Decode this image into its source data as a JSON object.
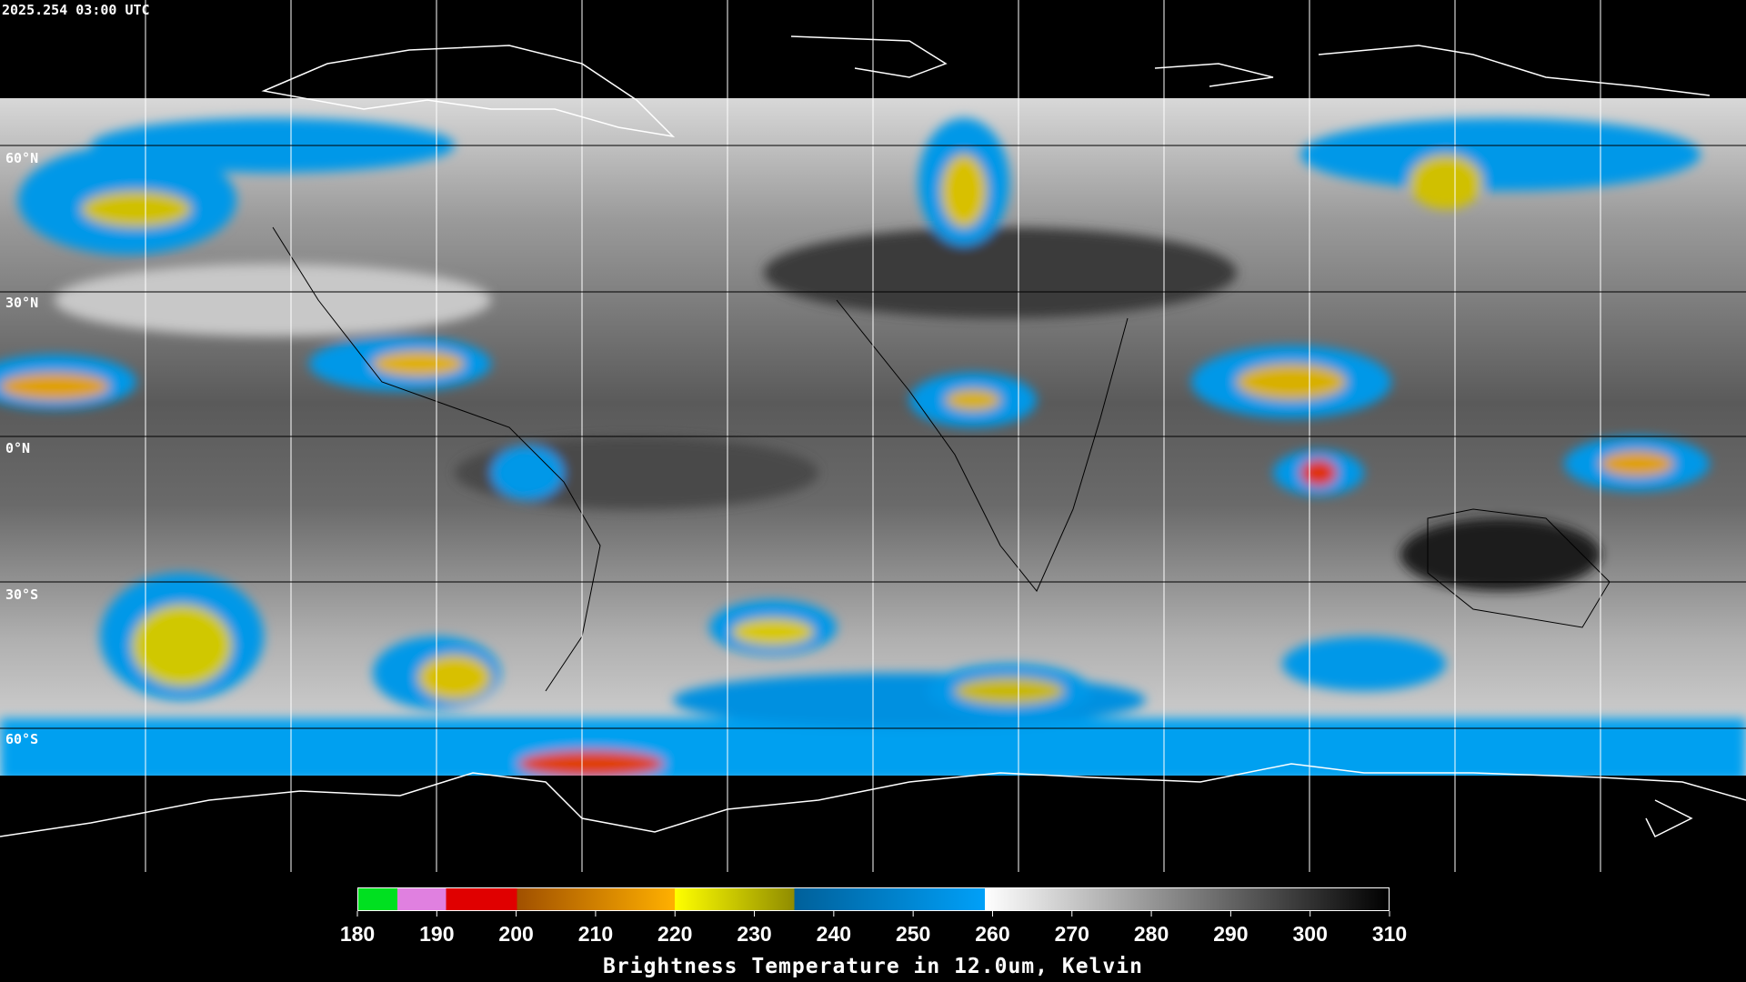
{
  "header": {
    "timestamp": "2025.254 03:00 UTC"
  },
  "map": {
    "latitude_labels": [
      "60°N",
      "30°N",
      "0°N",
      "30°S",
      "60°S"
    ]
  },
  "colorbar": {
    "ticks": [
      180,
      190,
      200,
      210,
      220,
      230,
      240,
      250,
      260,
      270,
      280,
      290,
      300,
      310
    ],
    "title": "Brightness Temperature in 12.0um, Kelvin"
  }
}
